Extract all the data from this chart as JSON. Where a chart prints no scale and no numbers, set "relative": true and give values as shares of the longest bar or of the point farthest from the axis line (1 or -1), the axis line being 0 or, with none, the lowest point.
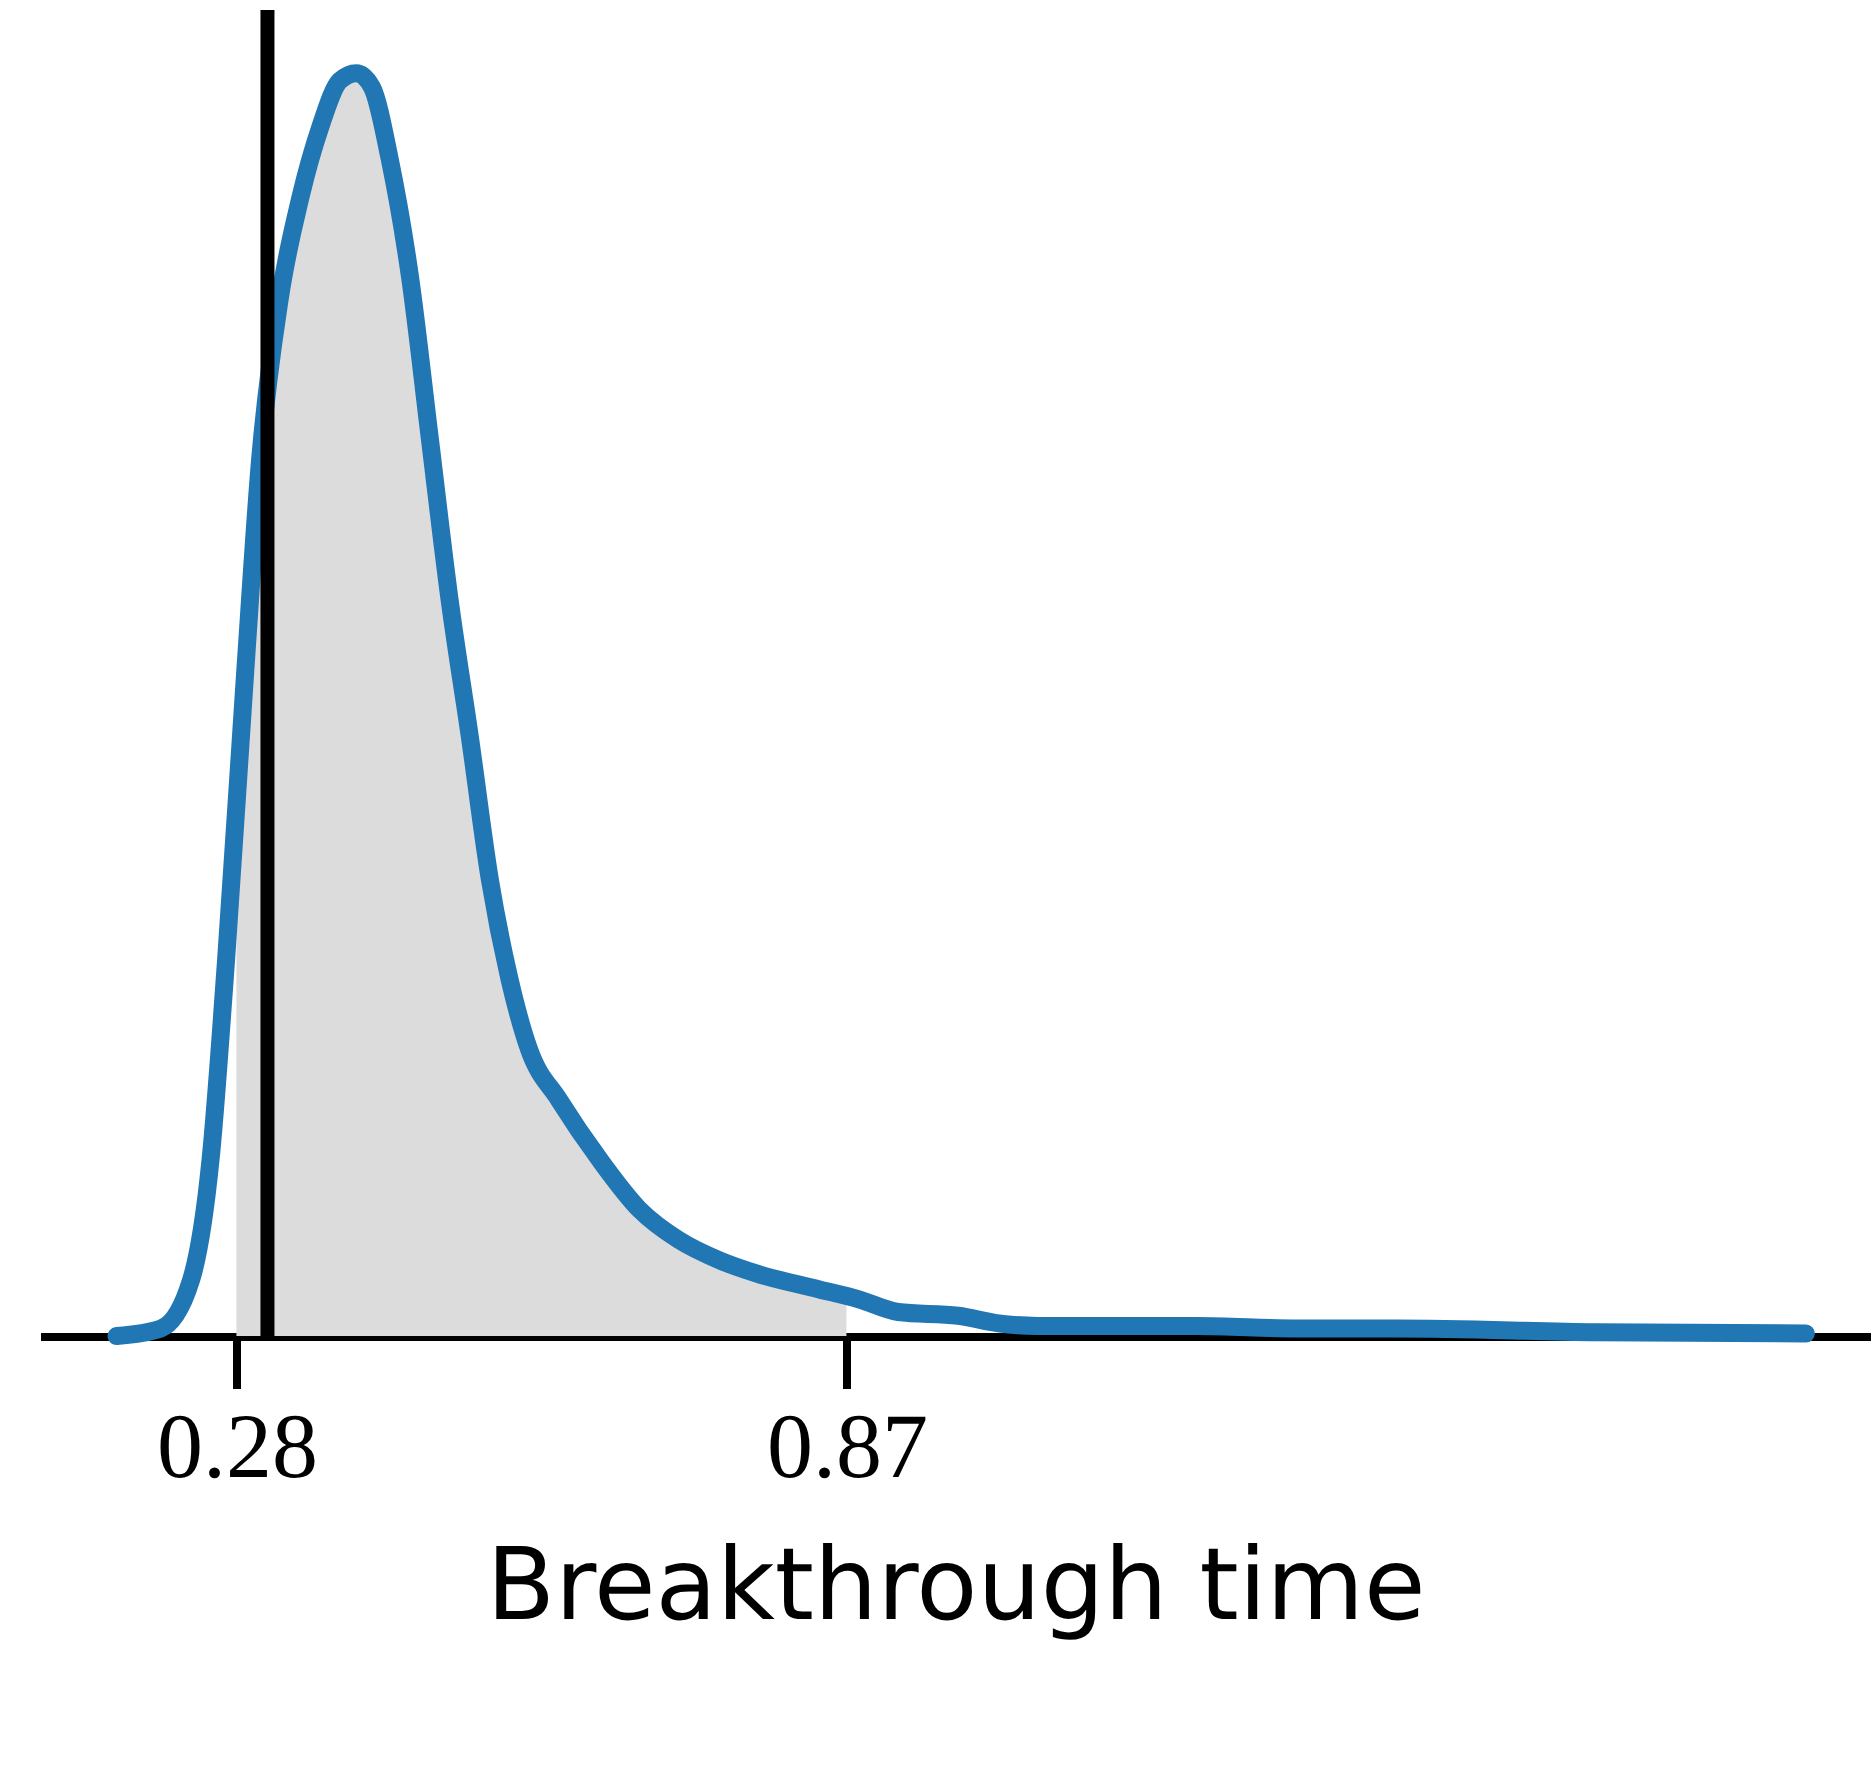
{
  "chart_data": {
    "type": "line",
    "xlabel": "Breakthrough time",
    "relative": true,
    "x": [
      0.164,
      0.207,
      0.236,
      0.255,
      0.27,
      0.288,
      0.303,
      0.322,
      0.342,
      0.361,
      0.38,
      0.396,
      0.411,
      0.428,
      0.448,
      0.467,
      0.486,
      0.506,
      0.525,
      0.544,
      0.563,
      0.592,
      0.631,
      0.67,
      0.708,
      0.747,
      0.785,
      0.843,
      0.882,
      0.92,
      0.978,
      1.017,
      1.055,
      1.132,
      1.209,
      1.306,
      1.402,
      1.595,
      1.798
    ],
    "series": [
      {
        "type": "area",
        "color": "#dcdcdc",
        "x": [
          0.28,
          0.288,
          0.303,
          0.322,
          0.342,
          0.361,
          0.38,
          0.396,
          0.411,
          0.428,
          0.448,
          0.467,
          0.486,
          0.506,
          0.525,
          0.544,
          0.563,
          0.592,
          0.631,
          0.67,
          0.708,
          0.747,
          0.785,
          0.843,
          0.87
        ],
        "values": [
          0.42,
          0.52,
          0.695,
          0.822,
          0.902,
          0.957,
          0.994,
          1,
          0.989,
          0.933,
          0.838,
          0.711,
          0.584,
          0.473,
          0.362,
          0.283,
          0.227,
          0.187,
          0.14,
          0.1,
          0.076,
          0.06,
          0.049,
          0.037,
          0.031
        ]
      },
      {
        "color": "#2176b4",
        "values": [
          0,
          0.006,
          0.044,
          0.14,
          0.298,
          0.52,
          0.695,
          0.822,
          0.902,
          0.957,
          0.994,
          1,
          0.989,
          0.933,
          0.838,
          0.711,
          0.584,
          0.473,
          0.362,
          0.283,
          0.227,
          0.187,
          0.14,
          0.1,
          0.076,
          0.06,
          0.049,
          0.037,
          0.029,
          0.019,
          0.016,
          0.01,
          0.008,
          0.008,
          0.008,
          0.006,
          0.006,
          0.003,
          0.002
        ]
      }
    ],
    "xlim": [
      0.09,
      1.86
    ],
    "xticks": [
      0.28,
      0.87
    ],
    "ref_lines": [
      {
        "axis": "x",
        "value": 0.31,
        "color": "#000000"
      }
    ],
    "grid": false,
    "marker": "none",
    "line_style": "solid"
  }
}
